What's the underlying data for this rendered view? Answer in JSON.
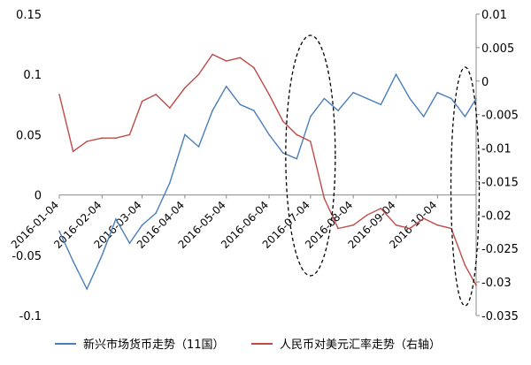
{
  "chart_data": {
    "type": "line",
    "x": [
      "2016-01-04",
      "2016-01-14",
      "2016-01-24",
      "2016-02-04",
      "2016-02-14",
      "2016-02-24",
      "2016-03-04",
      "2016-03-14",
      "2016-03-24",
      "2016-04-04",
      "2016-04-14",
      "2016-04-24",
      "2016-05-04",
      "2016-05-14",
      "2016-05-24",
      "2016-06-04",
      "2016-06-14",
      "2016-06-24",
      "2016-07-04",
      "2016-07-14",
      "2016-07-24",
      "2016-08-04",
      "2016-08-14",
      "2016-08-24",
      "2016-09-04",
      "2016-09-14",
      "2016-09-24",
      "2016-10-04",
      "2016-10-14",
      "2016-10-24",
      "2016-11-01"
    ],
    "x_tick_labels": [
      "2016-01-04",
      "2016-02-04",
      "2016-03-04",
      "2016-04-04",
      "2016-05-04",
      "2016-06-04",
      "2016-07-04",
      "2016-08-04",
      "2016-09-04",
      "2016-10-04"
    ],
    "y_left": {
      "ylim": [
        -0.1,
        0.15
      ],
      "ticks": [
        "-0.1",
        "-0.05",
        "0",
        "0.05",
        "0.1",
        "0.15"
      ],
      "tick_values": [
        -0.1,
        -0.05,
        0,
        0.05,
        0.1,
        0.15
      ]
    },
    "y_right": {
      "ylim": [
        -0.035,
        0.01
      ],
      "ticks": [
        "-0.035",
        "-0.03",
        "-0.025",
        "-0.02",
        "-0.015",
        "-0.01",
        "-0.005",
        "0",
        "0.005",
        "0.01"
      ],
      "tick_values": [
        -0.035,
        -0.03,
        -0.025,
        -0.02,
        -0.015,
        -0.01,
        -0.005,
        0,
        0.005,
        0.01
      ]
    },
    "series": [
      {
        "name": "新兴市场货币走势（11国）",
        "axis": "left",
        "color": "#4a7ebb",
        "values": [
          -0.03,
          -0.055,
          -0.078,
          -0.05,
          -0.02,
          -0.04,
          -0.025,
          -0.015,
          0.01,
          0.05,
          0.04,
          0.07,
          0.09,
          0.075,
          0.07,
          0.05,
          0.035,
          0.03,
          0.065,
          0.08,
          0.07,
          0.085,
          0.08,
          0.075,
          0.1,
          0.08,
          0.065,
          0.085,
          0.08,
          0.065,
          0.08
        ]
      },
      {
        "name": "人民币对美元汇率走势（右轴）",
        "axis": "right",
        "color": "#be4b48",
        "values": [
          -0.002,
          -0.0105,
          -0.009,
          -0.0085,
          -0.0085,
          -0.008,
          -0.003,
          -0.002,
          -0.004,
          -0.001,
          0.001,
          0.004,
          0.003,
          0.0035,
          0.002,
          -0.002,
          -0.006,
          -0.008,
          -0.009,
          -0.0175,
          -0.022,
          -0.0215,
          -0.02,
          -0.019,
          -0.0215,
          -0.022,
          -0.0205,
          -0.0215,
          -0.022,
          -0.0275,
          -0.0305
        ]
      }
    ],
    "legend": {
      "placement": "bottom"
    },
    "annotations": [
      {
        "shape": "dashed-ellipse",
        "around_x": "2016-07-04"
      },
      {
        "shape": "dashed-ellipse",
        "around_x": "2016-10-24"
      }
    ],
    "grid": false
  }
}
